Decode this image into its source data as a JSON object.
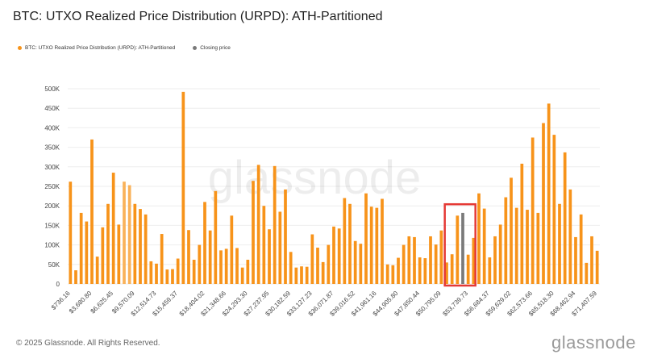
{
  "title": "BTC: UTXO Realized Price Distribution (URPD): ATH-Partitioned",
  "legend": [
    {
      "label": "BTC: UTXO Realized Price Distribution (URPD): ATH-Partitioned",
      "color": "#f7931a"
    },
    {
      "label": "Closing price",
      "color": "#7a7a7a"
    }
  ],
  "watermark": "glassnode",
  "footer": "© 2025 Glassnode. All Rights Reserved.",
  "brand": "glassnode",
  "colors": {
    "bar": "#f7931a",
    "bar_light": "#f9b25a",
    "closing": "#7a7a7a",
    "highlight": "#e53935",
    "grid": "#eeeeee"
  },
  "chart_data": {
    "type": "bar",
    "title": "BTC: UTXO Realized Price Distribution (URPD): ATH-Partitioned",
    "xlabel": "",
    "ylabel": "",
    "ylim": [
      0,
      500000
    ],
    "yticks": [
      0,
      50000,
      100000,
      150000,
      200000,
      250000,
      300000,
      350000,
      400000,
      450000,
      500000
    ],
    "ytick_labels": [
      "0",
      "50K",
      "100K",
      "150K",
      "200K",
      "250K",
      "300K",
      "350K",
      "400K",
      "450K",
      "500K"
    ],
    "xtick_labels": [
      "$736.16",
      "$3,680.80",
      "$6,625.45",
      "$9,570.09",
      "$12,514.73",
      "$15,459.37",
      "$18,404.02",
      "$21,348.66",
      "$24,293.30",
      "$27,237.95",
      "$30,182.59",
      "$33,127.23",
      "$36,071.87",
      "$39,016.52",
      "$41,961.16",
      "$44,905.80",
      "$47,850.44",
      "$50,795.09",
      "$53,739.73",
      "$56,684.37",
      "$59,629.02",
      "$62,573.66",
      "$65,518.30",
      "$68,462.94",
      "$71,407.59"
    ],
    "values": [
      262000,
      35000,
      182000,
      160000,
      370000,
      70000,
      145000,
      205000,
      285000,
      152000,
      262000,
      253000,
      205000,
      192000,
      178000,
      58000,
      52000,
      128000,
      37000,
      38000,
      65000,
      492000,
      138000,
      62000,
      100000,
      210000,
      137000,
      238000,
      86000,
      90000,
      175000,
      92000,
      42000,
      62000,
      264000,
      305000,
      200000,
      140000,
      302000,
      185000,
      242000,
      82000,
      42000,
      45000,
      44000,
      127000,
      93000,
      56000,
      100000,
      147000,
      142000,
      220000,
      205000,
      110000,
      103000,
      232000,
      198000,
      195000,
      218000,
      50000,
      48000,
      67000,
      100000,
      122000,
      120000,
      68000,
      66000,
      122000,
      101000,
      137000,
      55000,
      76000,
      175000,
      182000,
      75000,
      118000,
      232000,
      193000,
      68000,
      122000,
      152000,
      222000,
      272000,
      195000,
      308000,
      190000,
      375000,
      182000,
      412000,
      462000,
      382000,
      205000,
      337000,
      242000,
      120000,
      178000,
      54000,
      122000,
      85000
    ],
    "light_indices": [
      10,
      11
    ],
    "closing_index": 73,
    "highlight_range": [
      70,
      75
    ]
  }
}
